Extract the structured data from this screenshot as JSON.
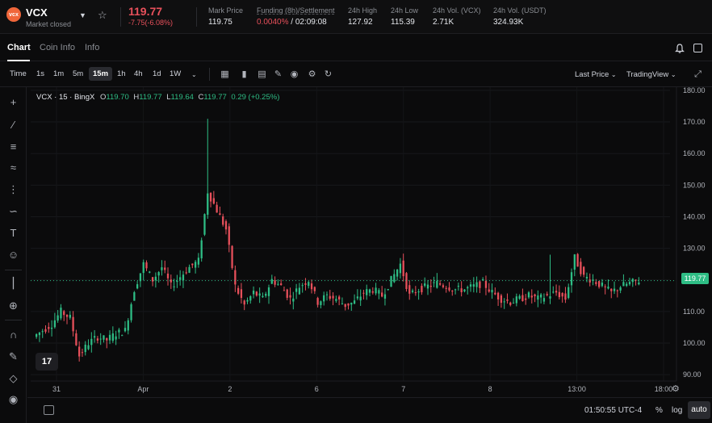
{
  "ticker": {
    "symbol": "VCX",
    "status": "Market closed",
    "logo_text": "vcx",
    "last_price": "119.77",
    "change": "-7.75(-6.08%)",
    "mark_price_label": "Mark Price",
    "mark_price": "119.75",
    "funding_label": "Funding (8h)/Settlement",
    "funding_rate": "0.0040%",
    "funding_countdown": "/ 02:09:08",
    "high_label": "24h High",
    "high": "127.92",
    "low_label": "24h Low",
    "low": "115.39",
    "vol_vcx_label": "24h Vol. (VCX)",
    "vol_vcx": "2.71K",
    "vol_usdt_label": "24h Vol. (USDT)",
    "vol_usdt": "324.93K"
  },
  "tabs": [
    "Chart",
    "Coin Info",
    "Info"
  ],
  "toolbar": {
    "time_label": "Time",
    "timeframes": [
      "1s",
      "1m",
      "5m",
      "15m",
      "1h",
      "4h",
      "1d",
      "1W"
    ],
    "active_timeframe": "15m",
    "last_price_label": "Last Price",
    "tradingview_label": "TradingView"
  },
  "legend": {
    "title": "VCX · 15 · BingX",
    "o_label": "O",
    "o": "119.70",
    "h_label": "H",
    "h": "119.77",
    "l_label": "L",
    "l": "119.64",
    "c_label": "C",
    "c": "119.77",
    "change": "0.29 (+0.25%)"
  },
  "bottom": {
    "clock": "01:50:55 UTC-4",
    "percent": "%",
    "log": "log",
    "auto": "auto"
  },
  "colors": {
    "up": "#2ebd85",
    "down": "#e8505b",
    "accent": "#f0663a"
  },
  "icons": [
    "chevron-down-icon",
    "star-icon",
    "bell-icon",
    "panel-icon",
    "crosshair-icon",
    "trend-line-icon",
    "fib-icon",
    "pattern-icon",
    "text-icon",
    "emoji-icon",
    "ruler-icon",
    "zoom-icon",
    "magnet-icon",
    "lock-icon",
    "eye-icon",
    "calendar-icon",
    "gear-icon"
  ],
  "chart_data": {
    "type": "candlestick",
    "current_price": 119.77,
    "y_ticks": [
      90,
      100,
      110,
      120,
      130,
      140,
      150,
      160,
      170,
      180
    ],
    "y_tick_labels": [
      "90.00",
      "100.00",
      "110.00",
      "120.00",
      "130.00",
      "140.00",
      "150.00",
      "160.00",
      "170.00",
      "180.00"
    ],
    "ylim": [
      88,
      181
    ],
    "x_tick_labels": [
      "31",
      "Apr",
      "2",
      "6",
      "7",
      "8",
      "13:00",
      "18:00"
    ],
    "grid": true,
    "price_points": [
      102,
      104,
      106,
      110,
      108,
      96,
      100,
      102,
      101,
      103,
      104,
      117,
      125,
      120,
      124,
      118,
      121,
      124,
      126,
      148,
      142,
      136,
      118,
      112,
      116,
      114,
      120,
      118,
      114,
      118,
      120,
      113,
      115,
      114,
      112,
      113,
      116,
      117,
      115,
      120,
      125,
      115,
      117,
      118,
      119,
      118,
      117,
      117,
      118,
      119,
      116,
      114,
      113,
      114,
      115,
      114,
      115,
      116,
      114,
      127,
      121,
      120,
      118,
      116,
      118,
      119,
      119.77
    ]
  }
}
